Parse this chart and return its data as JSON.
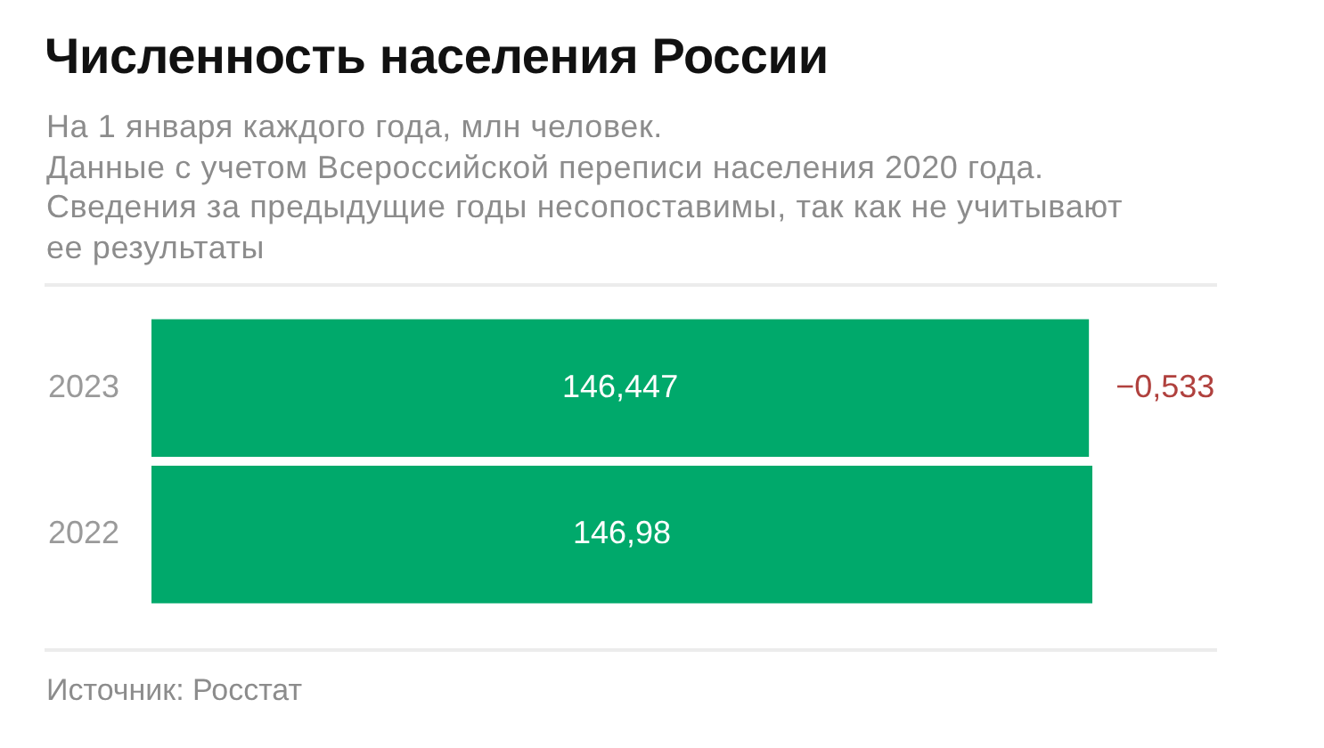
{
  "chart_data": {
    "type": "bar",
    "orientation": "horizontal",
    "title": "Численность населения России",
    "subtitle": "На 1 января каждого года, млн человек.\nДанные с учетом Всероссийской переписи населения 2020 года.\nСведения за предыдущие годы несопоставимы, так как не учитывают\nее результаты",
    "categories": [
      "2023",
      "2022"
    ],
    "values": [
      146.447,
      146.98
    ],
    "color": "#00a96b",
    "value_labels": [
      "146,447",
      "146,98"
    ],
    "tick_labels": "y",
    "annotations": [
      {
        "text": "−0,533",
        "x": 146.447,
        "y": "2023"
      },
      "Источник: Росстат"
    ]
  }
}
